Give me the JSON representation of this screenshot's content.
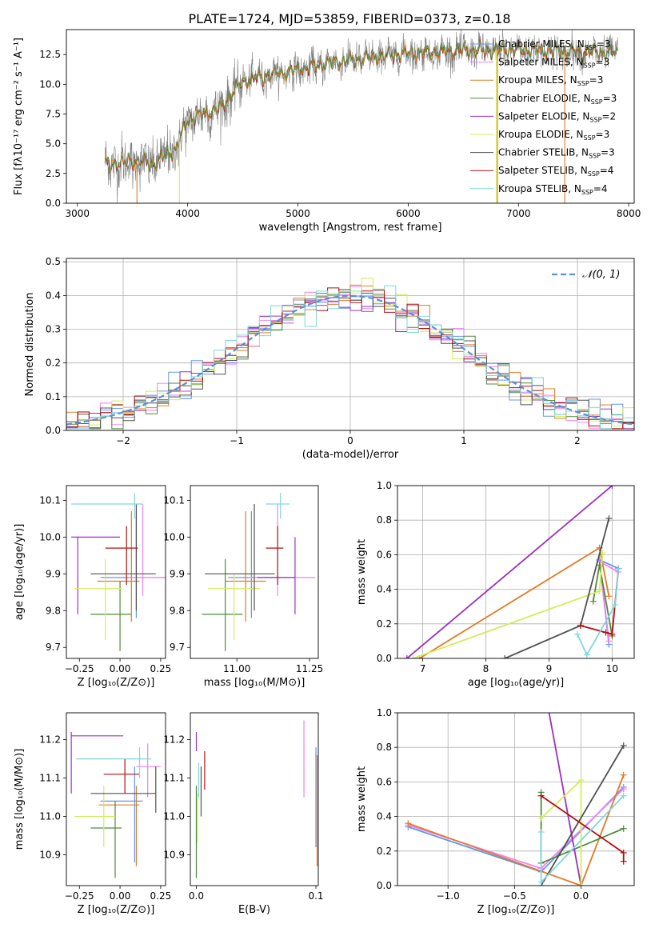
{
  "figure_title": "PLATE=1724, MJD=53859, FIBERID=0373, z=0.18",
  "colors": {
    "Chabrier MILES": "#6495ed",
    "Salpeter MILES": "#ee82ee",
    "Kroupa MILES": "#e07b28",
    "Chabrier ELODIE": "#4f8a3c",
    "Salpeter ELODIE": "#9b30c0",
    "Kroupa ELODIE": "#d4ec5a",
    "Chabrier STELIB": "#505050",
    "Salpeter STELIB": "#b01010",
    "Kroupa STELIB": "#7fd6dd",
    "data_gray": "#808080",
    "normal": "#5b8fd8"
  },
  "chart_data": [
    {
      "type": "line",
      "panel": "spectrum",
      "xlabel": "wavelength [Angstrom, rest frame]",
      "ylabel": "Flux [fλ10⁻¹⁷ erg cm⁻² s⁻¹ A⁻¹]",
      "xlim": [
        2900,
        8050
      ],
      "ylim": [
        0,
        14.6
      ],
      "xticks": [
        "3000",
        "4000",
        "5000",
        "6000",
        "7000",
        "8000"
      ],
      "yticks": [
        "0.0",
        "2.5",
        "5.0",
        "7.5",
        "10.0",
        "12.5"
      ],
      "legend_position": "right",
      "legend": [
        {
          "name": "Chabrier MILES",
          "label": "Chabrier MILES, N",
          "sub": "SSP",
          "n": "=3"
        },
        {
          "name": "Salpeter MILES",
          "label": "Salpeter MILES, N",
          "sub": "SSP",
          "n": "=3"
        },
        {
          "name": "Kroupa MILES",
          "label": "Kroupa MILES, N",
          "sub": "SSP",
          "n": "=3"
        },
        {
          "name": "Chabrier ELODIE",
          "label": "Chabrier ELODIE, N",
          "sub": "SSP",
          "n": "=3"
        },
        {
          "name": "Salpeter ELODIE",
          "label": "Salpeter ELODIE, N",
          "sub": "SSP",
          "n": "=2"
        },
        {
          "name": "Kroupa ELODIE",
          "label": "Kroupa ELODIE, N",
          "sub": "SSP",
          "n": "=3"
        },
        {
          "name": "Chabrier STELIB",
          "label": "Chabrier STELIB, N",
          "sub": "SSP",
          "n": "=3"
        },
        {
          "name": "Salpeter STELIB",
          "label": "Salpeter STELIB, N",
          "sub": "SSP",
          "n": "=4"
        },
        {
          "name": "Kroupa STELIB",
          "label": "Kroupa STELIB, N",
          "sub": "SSP",
          "n": "=4"
        }
      ],
      "continuum": [
        [
          3250,
          3.2
        ],
        [
          3500,
          3.5
        ],
        [
          3700,
          3.3
        ],
        [
          3900,
          4.6
        ],
        [
          4000,
          7.0
        ],
        [
          4300,
          8.0
        ],
        [
          4500,
          10.3
        ],
        [
          5000,
          11.2
        ],
        [
          5300,
          11.8
        ],
        [
          6000,
          12.6
        ],
        [
          6500,
          12.8
        ],
        [
          7000,
          12.9
        ],
        [
          7500,
          12.7
        ],
        [
          7900,
          12.6
        ]
      ],
      "spikes": [
        [
          3540,
          "Kroupa MILES"
        ],
        [
          3925,
          "Kroupa ELODIE"
        ],
        [
          6800,
          "Kroupa ELODIE"
        ],
        [
          6810,
          "Kroupa MILES"
        ],
        [
          7420,
          "Kroupa MILES"
        ]
      ]
    },
    {
      "type": "bar",
      "panel": "residual_histogram",
      "xlabel": "(data-model)/error",
      "ylabel": "Normed distribution",
      "xlim": [
        -2.5,
        2.5
      ],
      "ylim": [
        0,
        0.51
      ],
      "xticks": [
        "−2",
        "−1",
        "0",
        "1",
        "2"
      ],
      "yticks": [
        "0.0",
        "0.1",
        "0.2",
        "0.3",
        "0.4",
        "0.5"
      ],
      "grid": true,
      "legend": [
        {
          "name": "normal",
          "label": "𝒩(0, 1)"
        }
      ],
      "legend_position": "top-right",
      "bin_width": 0.1
    },
    {
      "type": "scatter",
      "panel": "age_vs_Z",
      "xlabel": "Z [log₁₀(Z/Z⊙)]",
      "ylabel": "age  [log₁₀(age/yr)]",
      "xlim": [
        -0.33,
        0.28
      ],
      "ylim": [
        9.67,
        10.14
      ],
      "xticks": [
        "−0.25",
        "0.00",
        "0.25"
      ],
      "yticks": [
        "9.7",
        "9.8",
        "9.9",
        "10.0",
        "10.1"
      ],
      "points": [
        {
          "series": "Chabrier MILES",
          "x": 0.1,
          "y": 9.89,
          "xlo": -0.12,
          "xhi": 0.28,
          "ylo": 9.78,
          "yhi": 10.07
        },
        {
          "series": "Salpeter MILES",
          "x": 0.14,
          "y": 9.89,
          "xlo": 0.05,
          "xhi": 0.3,
          "ylo": 9.84,
          "yhi": 10.09
        },
        {
          "series": "Kroupa MILES",
          "x": 0.07,
          "y": 9.88,
          "xlo": -0.14,
          "xhi": 0.12,
          "ylo": 9.77,
          "yhi": 10.07
        },
        {
          "series": "Chabrier ELODIE",
          "x": 0.0,
          "y": 9.79,
          "xlo": -0.18,
          "xhi": 0.07,
          "ylo": 9.69,
          "yhi": 9.88
        },
        {
          "series": "Salpeter ELODIE",
          "x": -0.26,
          "y": 10.0,
          "xlo": -0.3,
          "xhi": 0.0,
          "ylo": 9.79,
          "yhi": 10.0
        },
        {
          "series": "Kroupa ELODIE",
          "x": -0.09,
          "y": 9.86,
          "xlo": -0.28,
          "xhi": 0.01,
          "ylo": 9.72,
          "yhi": 9.94
        },
        {
          "series": "Chabrier STELIB",
          "x": 0.1,
          "y": 9.9,
          "xlo": -0.18,
          "xhi": 0.22,
          "ylo": 9.8,
          "yhi": 10.09
        },
        {
          "series": "Salpeter STELIB",
          "x": 0.04,
          "y": 9.97,
          "xlo": -0.09,
          "xhi": 0.11,
          "ylo": 9.87,
          "yhi": 10.03
        },
        {
          "series": "Kroupa STELIB",
          "x": 0.09,
          "y": 10.09,
          "xlo": -0.3,
          "xhi": 0.14,
          "ylo": 10.05,
          "yhi": 10.12
        }
      ]
    },
    {
      "type": "scatter",
      "panel": "age_vs_mass",
      "xlabel": "mass [log₁₀(M/M⊙)]",
      "ylabel": "",
      "xlim": [
        10.84,
        11.28
      ],
      "ylim": [
        9.67,
        10.14
      ],
      "xticks": [
        "11.00",
        "11.25"
      ],
      "yticks": [
        "9.7",
        "9.8",
        "9.9",
        "10.0",
        "10.1"
      ],
      "points": [
        {
          "series": "Chabrier MILES",
          "x": 11.05,
          "y": 9.89,
          "xlo": 10.97,
          "xhi": 11.17,
          "ylo": 9.78,
          "yhi": 10.07
        },
        {
          "series": "Salpeter MILES",
          "x": 11.14,
          "y": 9.89,
          "xlo": 11.04,
          "xhi": 11.27,
          "ylo": 9.84,
          "yhi": 10.09
        },
        {
          "series": "Kroupa MILES",
          "x": 11.03,
          "y": 9.88,
          "xlo": 10.96,
          "xhi": 11.1,
          "ylo": 9.77,
          "yhi": 10.07
        },
        {
          "series": "Chabrier ELODIE",
          "x": 10.96,
          "y": 9.79,
          "xlo": 10.88,
          "xhi": 11.02,
          "ylo": 9.69,
          "yhi": 9.94
        },
        {
          "series": "Salpeter ELODIE",
          "x": 11.2,
          "y": 9.89,
          "xlo": 11.07,
          "xhi": 11.2,
          "ylo": 9.79,
          "yhi": 10.0
        },
        {
          "series": "Kroupa ELODIE",
          "x": 10.99,
          "y": 9.86,
          "xlo": 10.9,
          "xhi": 11.08,
          "ylo": 9.72,
          "yhi": 9.9
        },
        {
          "series": "Chabrier STELIB",
          "x": 11.06,
          "y": 9.9,
          "xlo": 10.89,
          "xhi": 11.13,
          "ylo": 9.8,
          "yhi": 10.09
        },
        {
          "series": "Salpeter STELIB",
          "x": 11.14,
          "y": 9.97,
          "xlo": 11.1,
          "xhi": 11.16,
          "ylo": 9.87,
          "yhi": 10.03
        },
        {
          "series": "Kroupa STELIB",
          "x": 11.15,
          "y": 10.09,
          "xlo": 11.1,
          "xhi": 11.18,
          "ylo": 10.05,
          "yhi": 10.12
        }
      ]
    },
    {
      "type": "line",
      "panel": "mass_weight_vs_age",
      "xlabel": "age  [log₁₀(age/yr)]",
      "ylabel": "mass weight",
      "xlim": [
        6.6,
        10.35
      ],
      "ylim": [
        0,
        1
      ],
      "xticks": [
        "7",
        "8",
        "9",
        "10"
      ],
      "yticks": [
        "0.0",
        "0.2",
        "0.4",
        "0.6",
        "0.8",
        "1.0"
      ],
      "grid": true,
      "series": [
        {
          "name": "Chabrier MILES",
          "points": [
            [
              9.95,
              0.08
            ],
            [
              9.8,
              0.57
            ],
            [
              10.1,
              0.52
            ]
          ]
        },
        {
          "name": "Salpeter MILES",
          "points": [
            [
              9.95,
              0.1
            ],
            [
              9.8,
              0.56
            ],
            [
              10.1,
              0.5
            ]
          ]
        },
        {
          "name": "Kroupa MILES",
          "points": [
            [
              6.95,
              0.0
            ],
            [
              9.8,
              0.64
            ],
            [
              9.95,
              0.36
            ]
          ]
        },
        {
          "name": "Chabrier ELODIE",
          "points": [
            [
              10.0,
              0.13
            ],
            [
              9.8,
              0.54
            ],
            [
              9.7,
              0.33
            ]
          ]
        },
        {
          "name": "Salpeter ELODIE",
          "points": [
            [
              6.75,
              0.0
            ],
            [
              10.0,
              1.0
            ]
          ]
        },
        {
          "name": "Kroupa ELODIE",
          "points": [
            [
              6.85,
              0.0
            ],
            [
              9.8,
              0.39
            ],
            [
              9.85,
              0.61
            ]
          ]
        },
        {
          "name": "Chabrier STELIB",
          "points": [
            [
              8.3,
              0.0
            ],
            [
              9.5,
              0.19
            ],
            [
              9.95,
              0.81
            ]
          ]
        },
        {
          "name": "Salpeter STELIB",
          "points": [
            [
              9.5,
              0.19
            ],
            [
              9.9,
              0.15
            ],
            [
              10.0,
              0.14
            ],
            [
              10.1,
              0.52
            ]
          ]
        },
        {
          "name": "Kroupa STELIB",
          "points": [
            [
              9.45,
              0.14
            ],
            [
              9.6,
              0.02
            ],
            [
              10.05,
              0.31
            ],
            [
              10.1,
              0.52
            ]
          ]
        }
      ]
    },
    {
      "type": "scatter",
      "panel": "mass_vs_Z",
      "xlabel": "Z [log₁₀(Z/Z⊙)]",
      "ylabel": "mass [log₁₀(M/M⊙)]",
      "xlim": [
        -0.33,
        0.28
      ],
      "ylim": [
        10.82,
        11.27
      ],
      "xticks": [
        "−0.25",
        "0.00",
        "0.25"
      ],
      "yticks": [
        "10.9",
        "11.0",
        "11.1",
        "11.2"
      ],
      "points": [
        {
          "series": "Chabrier MILES",
          "x": 0.09,
          "y": 11.04,
          "xlo": -0.12,
          "xhi": 0.14,
          "ylo": 10.88,
          "yhi": 11.13
        },
        {
          "series": "Salpeter MILES",
          "x": 0.17,
          "y": 11.13,
          "xlo": 0.1,
          "xhi": 0.25,
          "ylo": 11.05,
          "yhi": 11.19
        },
        {
          "series": "Kroupa MILES",
          "x": 0.1,
          "y": 11.03,
          "xlo": -0.13,
          "xhi": 0.12,
          "ylo": 10.87,
          "yhi": 11.08
        },
        {
          "series": "Chabrier ELODIE",
          "x": -0.03,
          "y": 10.97,
          "xlo": -0.18,
          "xhi": 0.01,
          "ylo": 10.84,
          "yhi": 11.04
        },
        {
          "series": "Salpeter ELODIE",
          "x": -0.3,
          "y": 11.21,
          "xlo": -0.3,
          "xhi": 0.02,
          "ylo": 11.06,
          "yhi": 11.22
        },
        {
          "series": "Kroupa ELODIE",
          "x": -0.1,
          "y": 11.0,
          "xlo": -0.28,
          "xhi": -0.03,
          "ylo": 10.92,
          "yhi": 11.08
        },
        {
          "series": "Chabrier STELIB",
          "x": 0.22,
          "y": 11.06,
          "xlo": -0.18,
          "xhi": 0.22,
          "ylo": 11.01,
          "yhi": 11.13
        },
        {
          "series": "Salpeter STELIB",
          "x": 0.03,
          "y": 11.11,
          "xlo": -0.1,
          "xhi": 0.12,
          "ylo": 11.06,
          "yhi": 11.15
        },
        {
          "series": "Kroupa STELIB",
          "x": 0.12,
          "y": 11.15,
          "xlo": -0.27,
          "xhi": 0.19,
          "ylo": 11.1,
          "yhi": 11.18
        }
      ]
    },
    {
      "type": "scatter",
      "panel": "mass_vs_EBV",
      "xlabel": "E(B-V)",
      "ylabel": "",
      "xlim": [
        -0.005,
        0.102
      ],
      "ylim": [
        10.82,
        11.27
      ],
      "xticks": [
        "0.0",
        "0.1"
      ],
      "yticks": [
        "10.9",
        "11.0",
        "11.1",
        "11.2"
      ],
      "points": [
        {
          "series": "Chabrier MILES",
          "x": 0.1,
          "y": 11.04,
          "ylo": 10.92,
          "yhi": 11.18
        },
        {
          "series": "Salpeter MILES",
          "x": 0.09,
          "y": 11.15,
          "ylo": 11.05,
          "yhi": 11.25
        },
        {
          "series": "Kroupa MILES",
          "x": 0.101,
          "y": 11.03,
          "ylo": 10.87,
          "yhi": 11.16
        },
        {
          "series": "Chabrier ELODIE",
          "x": 0.0,
          "y": 10.97,
          "ylo": 10.84,
          "yhi": 11.08
        },
        {
          "series": "Salpeter ELODIE",
          "x": 0.0,
          "y": 11.21,
          "ylo": 11.17,
          "yhi": 11.22
        },
        {
          "series": "Kroupa ELODIE",
          "x": 0.001,
          "y": 11.0,
          "ylo": 10.93,
          "yhi": 11.06
        },
        {
          "series": "Chabrier STELIB",
          "x": 0.004,
          "y": 11.06,
          "ylo": 11.0,
          "yhi": 11.13
        },
        {
          "series": "Salpeter STELIB",
          "x": 0.007,
          "y": 11.11,
          "ylo": 11.07,
          "yhi": 11.17
        },
        {
          "series": "Kroupa STELIB",
          "x": 0.002,
          "y": 11.1,
          "ylo": 11.05,
          "yhi": 11.14
        }
      ]
    },
    {
      "type": "line",
      "panel": "mass_weight_vs_Z",
      "xlabel": "Z [log₁₀(Z/Z⊙)]",
      "ylabel": "mass weight",
      "xlim": [
        -1.38,
        0.4
      ],
      "ylim": [
        0,
        1
      ],
      "xticks": [
        "−1.0",
        "−0.5",
        "0.0"
      ],
      "yticks": [
        "0.0",
        "0.2",
        "0.4",
        "0.6",
        "0.8",
        "1.0"
      ],
      "grid": true,
      "series": [
        {
          "name": "Chabrier MILES",
          "points": [
            [
              -1.3,
              0.34
            ],
            [
              -0.3,
              0.08
            ],
            [
              0.32,
              0.57
            ]
          ]
        },
        {
          "name": "Salpeter MILES",
          "points": [
            [
              -1.3,
              0.35
            ],
            [
              -0.3,
              0.1
            ],
            [
              0.32,
              0.56
            ]
          ]
        },
        {
          "name": "Kroupa MILES",
          "points": [
            [
              -1.3,
              0.36
            ],
            [
              0.0,
              0.0
            ],
            [
              0.32,
              0.64
            ]
          ]
        },
        {
          "name": "Chabrier ELODIE",
          "points": [
            [
              -0.3,
              0.54
            ],
            [
              -0.3,
              0.13
            ],
            [
              0.32,
              0.33
            ]
          ]
        },
        {
          "name": "Salpeter ELODIE",
          "points": [
            [
              -0.3,
              1.25
            ],
            [
              0.0,
              0.0
            ]
          ]
        },
        {
          "name": "Kroupa ELODIE",
          "points": [
            [
              -0.3,
              0.39
            ],
            [
              0.0,
              0.61
            ],
            [
              0.0,
              0.0
            ]
          ]
        },
        {
          "name": "Chabrier STELIB",
          "points": [
            [
              -0.3,
              0.0
            ],
            [
              0.32,
              0.81
            ]
          ]
        },
        {
          "name": "Salpeter STELIB",
          "points": [
            [
              -0.3,
              0.52
            ],
            [
              0.32,
              0.19
            ],
            [
              0.32,
              0.14
            ]
          ]
        },
        {
          "name": "Kroupa STELIB",
          "points": [
            [
              -0.3,
              0.31
            ],
            [
              -0.3,
              0.02
            ],
            [
              0.32,
              0.52
            ]
          ]
        }
      ]
    }
  ]
}
